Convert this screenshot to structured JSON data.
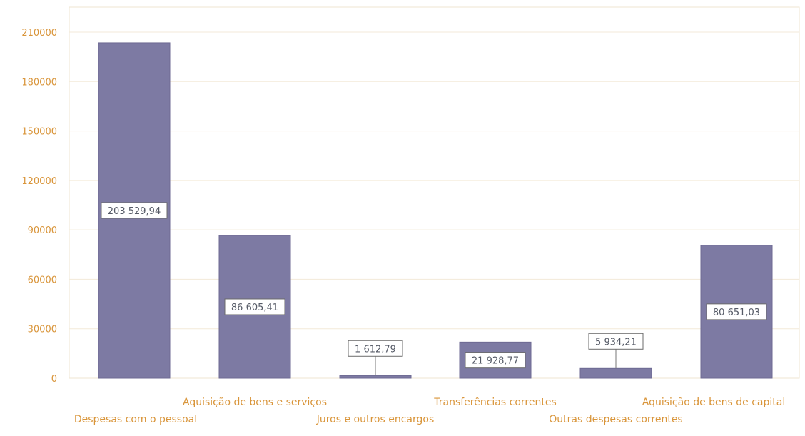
{
  "colors": {
    "bar": "#7d7aa3",
    "bar_edge": "#6e6a93",
    "axis_text": "#d9953a",
    "grid": "#f3ead8",
    "plot_border": "#efe6d2",
    "label_box_border": "#6b6b6b",
    "label_text": "#555a66",
    "leader": "#777777"
  },
  "chart_data": {
    "type": "bar",
    "categories": [
      "Despesas com o pessoal",
      "Aquisição de bens e serviços",
      "Juros e outros encargos",
      "Transferências correntes",
      "Outras despesas correntes",
      "Aquisição de bens de capital"
    ],
    "values": [
      203529.94,
      86605.41,
      1612.79,
      21928.77,
      5934.21,
      80651.03
    ],
    "data_labels": [
      "203 529,94",
      "86 605,41",
      "1 612,79",
      "21 928,77",
      "5 934,21",
      "80 651,03"
    ],
    "yticks": [
      "0",
      "30000",
      "60000",
      "90000",
      "120000",
      "150000",
      "180000",
      "210000"
    ],
    "ylim": [
      0,
      210000
    ],
    "grid": true,
    "legend": "none"
  }
}
